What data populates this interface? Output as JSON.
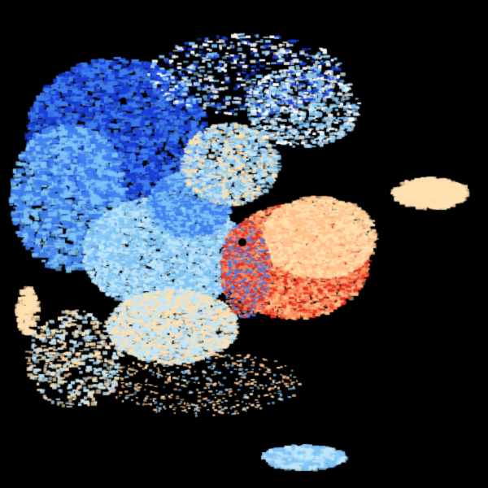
{
  "image": {
    "kind": "doppler-radar-velocity",
    "background_color": "#000000",
    "palette": {
      "inbound_strong": "#1a3fd6",
      "inbound_medium": "#3f7ff0",
      "inbound_light": "#7fc4f5",
      "inbound_pale": "#bfe6fb",
      "outbound_pale": "#ffe0b0",
      "outbound_light": "#ffc08a",
      "outbound_medium": "#ff8a5c",
      "outbound_strong": "#e8301c"
    }
  }
}
